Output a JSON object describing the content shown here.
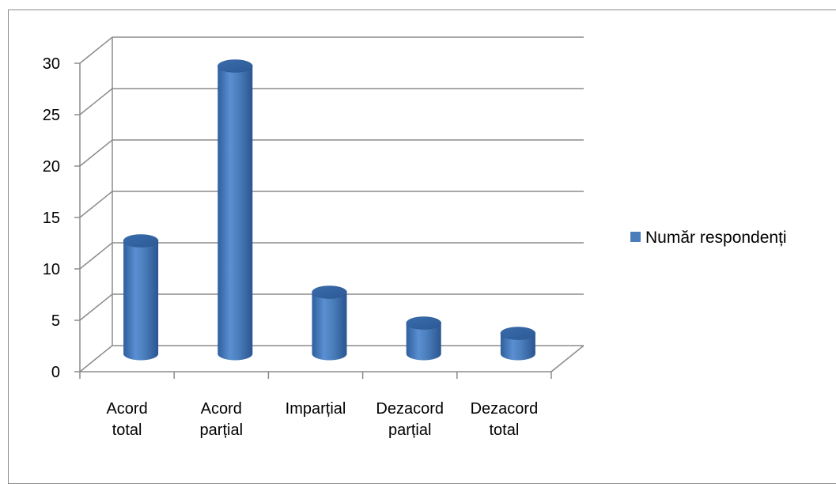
{
  "chart_data": {
    "type": "bar",
    "style": "3d-cylinder",
    "categories": [
      [
        "Acord",
        "total"
      ],
      [
        "Acord",
        "parțial"
      ],
      [
        "Imparțial"
      ],
      [
        "Dezacord",
        "parțial"
      ],
      [
        "Dezacord",
        "total"
      ]
    ],
    "series": [
      {
        "name": "Număr respondenți",
        "values": [
          11,
          28,
          6,
          3,
          2
        ]
      }
    ],
    "ylim": [
      0,
      30
    ],
    "yticks": [
      0,
      5,
      10,
      15,
      20,
      25,
      30
    ],
    "grid": true,
    "legend_position": "right",
    "colors": {
      "bar": "#4a7ebb",
      "bar_dark": "#2c5a94",
      "bar_light": "#7fa7dc",
      "grid": "#8c8c8c"
    }
  }
}
